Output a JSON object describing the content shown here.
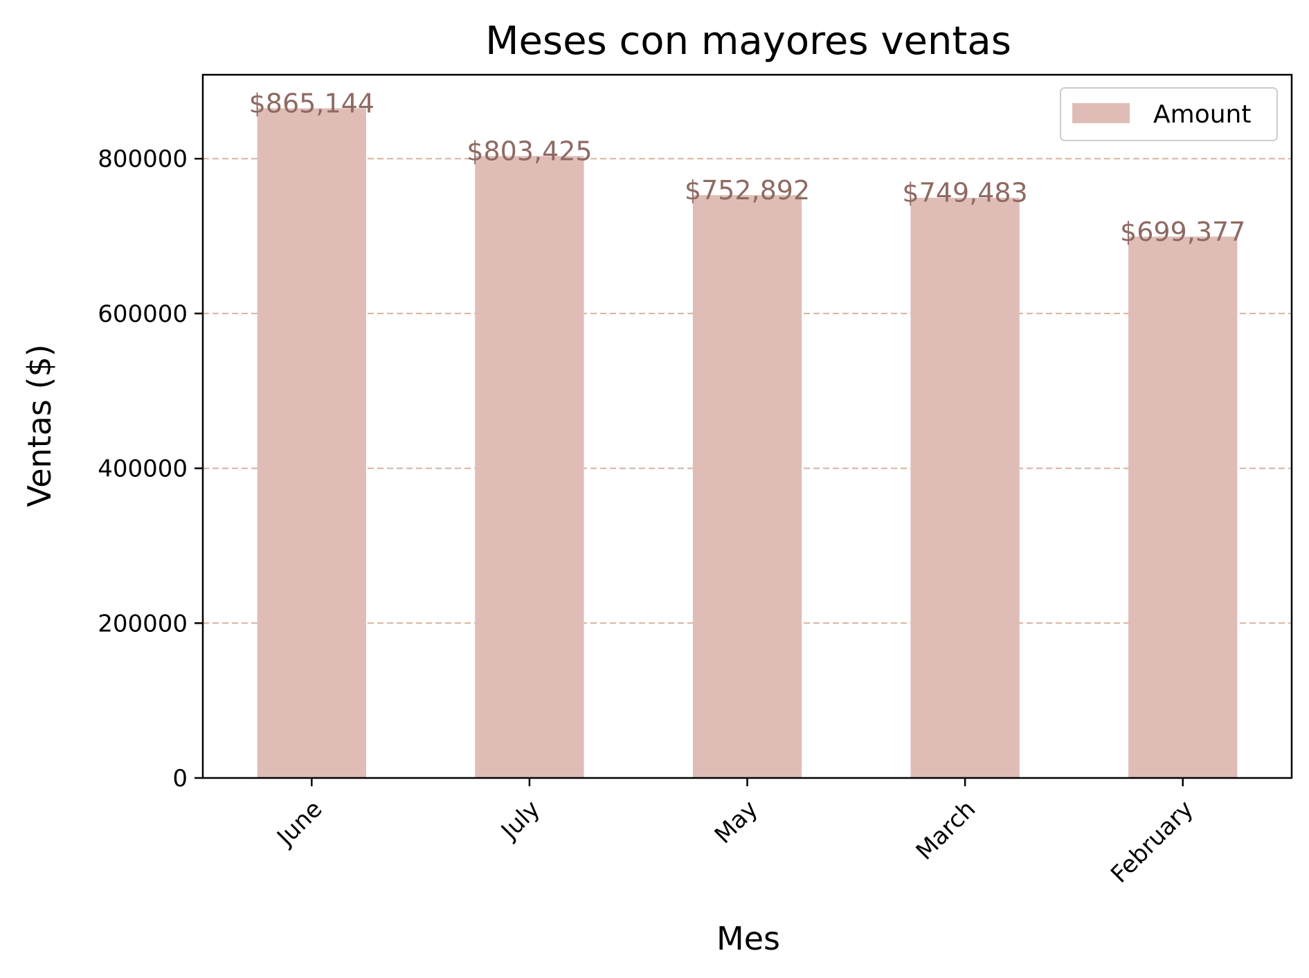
{
  "chart_data": {
    "type": "bar",
    "title": "Meses con mayores ventas",
    "xlabel": "Mes",
    "ylabel": "Ventas ($)",
    "categories": [
      "June",
      "July",
      "May",
      "March",
      "February"
    ],
    "series": [
      {
        "name": "Amount",
        "values": [
          865144,
          803425,
          752892,
          749483,
          699377
        ],
        "labels": [
          "$865,144",
          "$803,425",
          "$752,892",
          "$749,483",
          "$699,377"
        ]
      }
    ],
    "ylim": [
      0,
      908401
    ],
    "yticks": [
      0,
      200000,
      400000,
      600000,
      800000
    ],
    "ytick_labels": [
      "0",
      "200000",
      "400000",
      "600000",
      "800000"
    ],
    "grid": "y-axis, dashed",
    "legend_position": "top-right",
    "x_tick_rotation": "45 degrees",
    "colors": {
      "bar": "#dfbdb6",
      "data_label": "#8e6a63",
      "grid": "#d7b2a0",
      "axis": "#000000"
    }
  }
}
